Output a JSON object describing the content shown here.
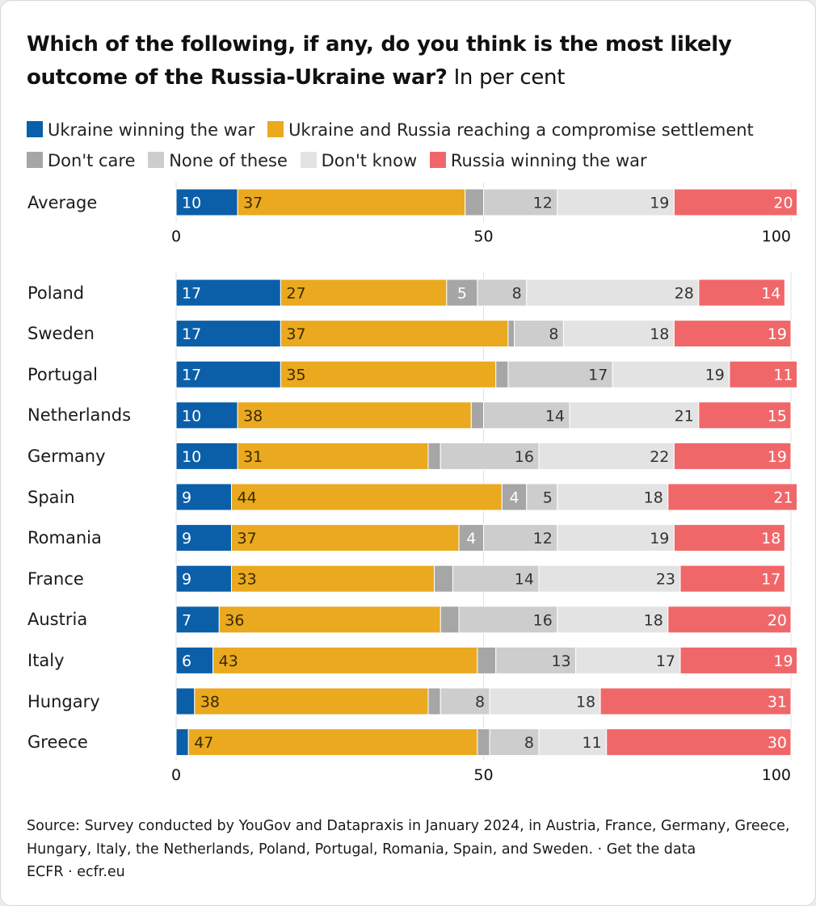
{
  "title": {
    "bold": "Which of the following, if any, do you think is the most likely outcome of the Russia-Ukraine war?",
    "subtitle": "In per cent"
  },
  "legend": [
    {
      "label": "Ukraine winning the war",
      "color": "#0b5fa9"
    },
    {
      "label": "Ukraine and Russia reaching a compromise settlement",
      "color": "#eaa91f"
    },
    {
      "label": "Don't care",
      "color": "#a6a6a6"
    },
    {
      "label": "None of these",
      "color": "#cdcdcd"
    },
    {
      "label": "Don't know",
      "color": "#e3e3e3"
    },
    {
      "label": "Russia winning the war",
      "color": "#f0676a"
    }
  ],
  "footer": {
    "source": "Source: Survey conducted by YouGov and Datapraxis in January 2024, in Austria, France, Germany, Greece, Hungary, Italy, the Netherlands, Poland, Portugal, Romania, Spain, and Sweden. · Get the data",
    "credit": "ECFR · ecfr.eu"
  },
  "chart_data": {
    "type": "bar",
    "orientation": "horizontal-stacked",
    "xlim": [
      0,
      100
    ],
    "xticks": [
      0,
      50,
      100
    ],
    "grid": true,
    "series": [
      {
        "name": "Ukraine winning the war",
        "color": "#0b5fa9"
      },
      {
        "name": "Ukraine and Russia reaching a compromise settlement",
        "color": "#eaa91f"
      },
      {
        "name": "Don't care",
        "color": "#a6a6a6"
      },
      {
        "name": "None of these",
        "color": "#cdcdcd"
      },
      {
        "name": "Don't know",
        "color": "#e3e3e3"
      },
      {
        "name": "Russia winning the war",
        "color": "#f0676a"
      }
    ],
    "groups": [
      {
        "rows": [
          {
            "label": "Average",
            "values": [
              10,
              37,
              3,
              12,
              19,
              20
            ]
          }
        ]
      },
      {
        "rows": [
          {
            "label": "Poland",
            "values": [
              17,
              27,
              5,
              8,
              28,
              14
            ]
          },
          {
            "label": "Sweden",
            "values": [
              17,
              37,
              1,
              8,
              18,
              19
            ]
          },
          {
            "label": "Portugal",
            "values": [
              17,
              35,
              2,
              17,
              19,
              11
            ]
          },
          {
            "label": "Netherlands",
            "values": [
              10,
              38,
              2,
              14,
              21,
              15
            ]
          },
          {
            "label": "Germany",
            "values": [
              10,
              31,
              2,
              16,
              22,
              19
            ]
          },
          {
            "label": "Spain",
            "values": [
              9,
              44,
              4,
              5,
              18,
              21
            ]
          },
          {
            "label": "Romania",
            "values": [
              9,
              37,
              4,
              12,
              19,
              18
            ]
          },
          {
            "label": "France",
            "values": [
              9,
              33,
              3,
              14,
              23,
              17
            ]
          },
          {
            "label": "Austria",
            "values": [
              7,
              36,
              3,
              16,
              18,
              20
            ]
          },
          {
            "label": "Italy",
            "values": [
              6,
              43,
              3,
              13,
              17,
              19
            ]
          },
          {
            "label": "Hungary",
            "values": [
              3,
              38,
              2,
              8,
              18,
              31
            ]
          },
          {
            "label": "Greece",
            "values": [
              2,
              47,
              2,
              8,
              11,
              30
            ]
          }
        ]
      }
    ]
  }
}
